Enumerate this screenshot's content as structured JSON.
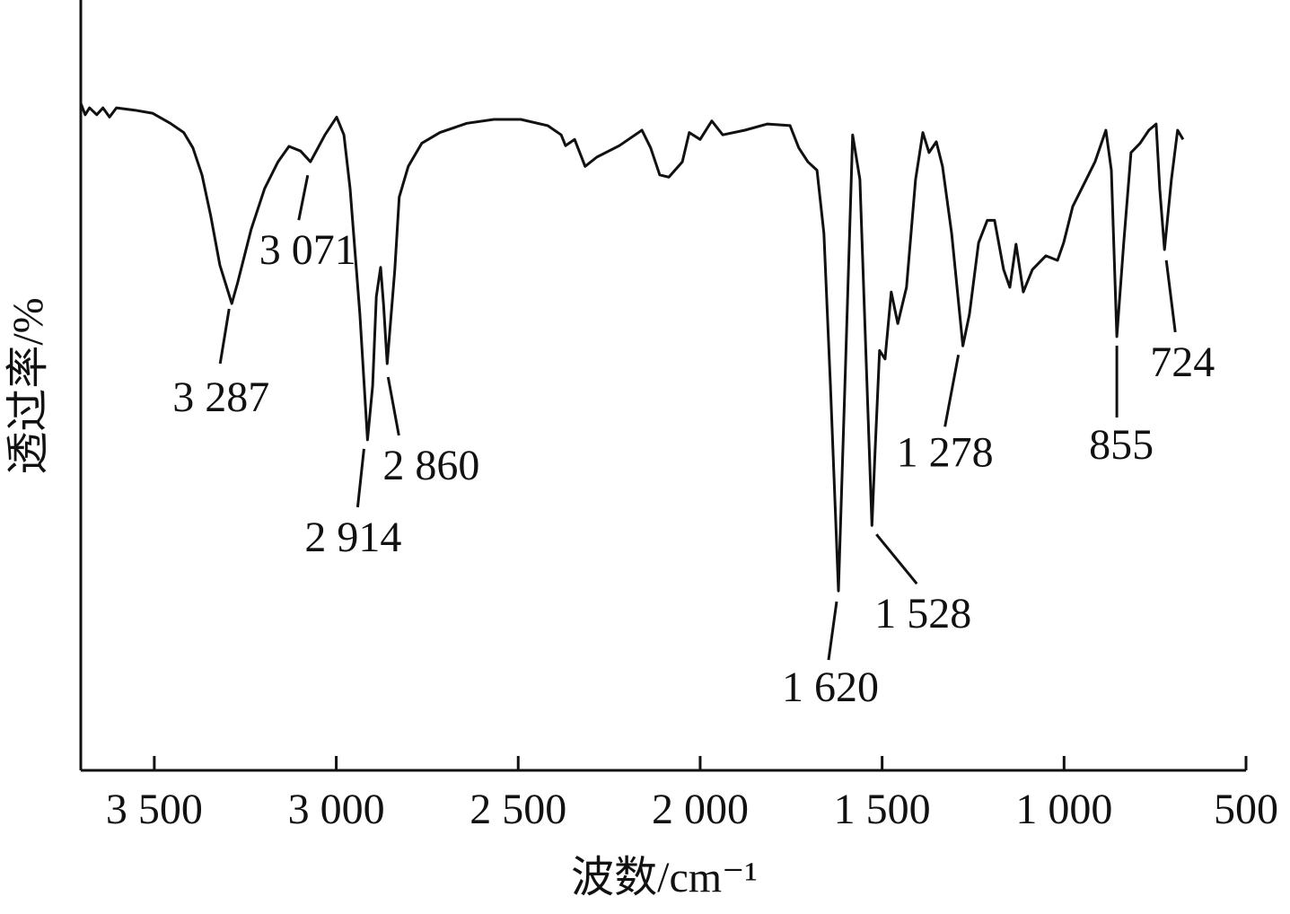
{
  "chart_data": {
    "type": "line",
    "xlabel": "波数/cm⁻¹",
    "ylabel": "透过率/%",
    "xlim": [
      3702,
      500
    ],
    "ylim": [
      0,
      100
    ],
    "xticks": [
      {
        "value": 3500,
        "label": "3 500"
      },
      {
        "value": 3000,
        "label": "3 000"
      },
      {
        "value": 2500,
        "label": "2 500"
      },
      {
        "value": 2000,
        "label": "2 000"
      },
      {
        "value": 1500,
        "label": "1 500"
      },
      {
        "value": 1000,
        "label": "1 000"
      },
      500
    ],
    "color": "#111111",
    "x": [
      3702,
      3690,
      3678,
      3658,
      3641,
      3623,
      3604,
      3554,
      3505,
      3456,
      3419,
      3394,
      3369,
      3345,
      3320,
      3287,
      3271,
      3234,
      3197,
      3160,
      3130,
      3098,
      3071,
      3056,
      3031,
      2999,
      2979,
      2962,
      2935,
      2914,
      2900,
      2890,
      2878,
      2870,
      2860,
      2839,
      2827,
      2802,
      2765,
      2715,
      2641,
      2567,
      2493,
      2419,
      2382,
      2370,
      2345,
      2316,
      2284,
      2222,
      2160,
      2136,
      2111,
      2086,
      2049,
      2030,
      2000,
      1968,
      1938,
      1877,
      1815,
      1753,
      1729,
      1704,
      1679,
      1660,
      1642,
      1620,
      1600,
      1581,
      1561,
      1544,
      1528,
      1519,
      1507,
      1492,
      1475,
      1457,
      1433,
      1408,
      1388,
      1371,
      1351,
      1334,
      1309,
      1278,
      1260,
      1235,
      1211,
      1191,
      1166,
      1149,
      1132,
      1112,
      1087,
      1050,
      1018,
      1001,
      976,
      939,
      915,
      885,
      870,
      855,
      836,
      816,
      791,
      767,
      747,
      737,
      724,
      705,
      688,
      673
    ],
    "values": [
      86.6,
      85.1,
      86.0,
      85.1,
      86.0,
      84.8,
      86.0,
      85.7,
      85.3,
      84.0,
      82.8,
      80.8,
      77.3,
      72.0,
      65.6,
      60.6,
      63.3,
      70.2,
      75.5,
      79.0,
      81.0,
      80.4,
      79.0,
      80.3,
      82.5,
      84.8,
      82.5,
      75.5,
      59.2,
      42.9,
      49.9,
      61.5,
      65.3,
      60.4,
      52.8,
      65.0,
      74.4,
      78.4,
      81.4,
      82.8,
      84.0,
      84.5,
      84.5,
      83.7,
      82.5,
      81.1,
      81.9,
      78.4,
      79.6,
      81.1,
      83.1,
      80.8,
      77.3,
      77.0,
      79.0,
      82.8,
      81.9,
      84.3,
      82.5,
      83.1,
      83.9,
      83.7,
      80.8,
      79.0,
      77.9,
      69.7,
      49.9,
      23.3,
      53.4,
      82.5,
      76.7,
      53.4,
      31.8,
      41.7,
      54.5,
      53.4,
      62.1,
      58.0,
      62.7,
      76.7,
      82.8,
      80.2,
      81.6,
      78.4,
      69.7,
      55.1,
      59.2,
      68.5,
      71.4,
      71.4,
      65.0,
      62.7,
      68.3,
      62.1,
      65.0,
      66.8,
      66.2,
      68.5,
      73.2,
      76.7,
      79.0,
      83.1,
      77.9,
      56.3,
      68.5,
      80.2,
      81.4,
      83.1,
      83.9,
      75.5,
      67.6,
      76.7,
      83.1,
      81.9
    ],
    "annotations": [
      {
        "text": "3 287",
        "x": 3287
      },
      {
        "text": "3 071",
        "x": 3071
      },
      {
        "text": "2 914",
        "x": 2914
      },
      {
        "text": "2 860",
        "x": 2860
      },
      {
        "text": "1 620",
        "x": 1620
      },
      {
        "text": "1 528",
        "x": 1528
      },
      {
        "text": "1 278",
        "x": 1278
      },
      {
        "text": "855",
        "x": 855
      },
      {
        "text": "724",
        "x": 724
      }
    ]
  }
}
